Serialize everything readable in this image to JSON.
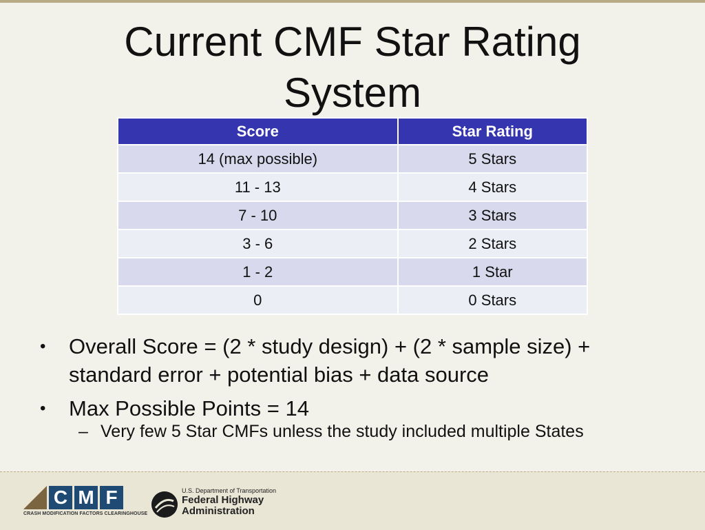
{
  "title": "Current CMF Star Rating System",
  "table": {
    "headers": [
      "Score",
      "Star Rating"
    ],
    "rows": [
      [
        "14 (max possible)",
        "5 Stars"
      ],
      [
        "11 - 13",
        "4 Stars"
      ],
      [
        "7 - 10",
        "3 Stars"
      ],
      [
        "3 - 6",
        "2 Stars"
      ],
      [
        "1 - 2",
        "1 Star"
      ],
      [
        "0",
        "0 Stars"
      ]
    ]
  },
  "bullets": [
    "Overall Score = (2 * study design) + (2 * sample size) + standard error + potential bias + data source",
    "Max Possible Points = 14"
  ],
  "sub_bullets": [
    "Very few 5 Star CMFs unless the study included multiple States"
  ],
  "footer": {
    "cmf_letters": [
      "C",
      "M",
      "F"
    ],
    "cmf_caption": "CRASH MODIFICATION FACTORS CLEARINGHOUSE",
    "fhwa_department": "U.S. Department of Transportation",
    "fhwa_line1": "Federal Highway",
    "fhwa_line2": "Administration"
  },
  "colors": {
    "header_bg": "#3535b0",
    "row_dark": "#d8d9ec",
    "row_light": "#eceef5",
    "background": "#f3f2ea"
  }
}
